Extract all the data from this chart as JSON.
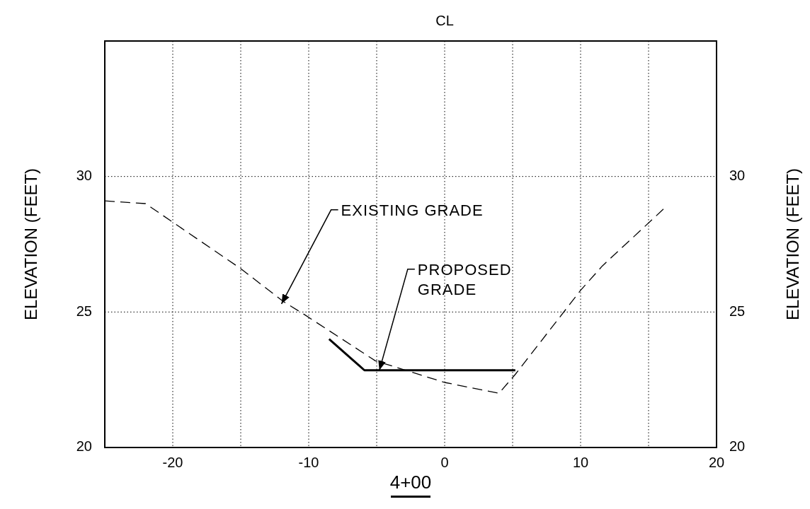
{
  "chart_data": {
    "type": "line",
    "xlabel": "4+00",
    "ylabel": "ELEVATION (FEET)",
    "y2label": "ELEVATION (FEET)",
    "xlim": [
      -25,
      20
    ],
    "ylim": [
      20,
      35
    ],
    "y2lim": [
      20,
      35
    ],
    "xticks": [
      -20,
      {
        "value": -15,
        "label": null
      },
      -10,
      {
        "value": -5,
        "label": null
      },
      0,
      {
        "value": 5,
        "label": null
      },
      10,
      {
        "value": 15,
        "label": null
      },
      20
    ],
    "yticks": [
      20,
      25,
      30
    ],
    "y2ticks": [
      20,
      25,
      30
    ],
    "grid": true,
    "series": [
      {
        "color": "#000000",
        "line_style": "dashed",
        "x": [
          -25,
          -22,
          -15,
          -11.9,
          -10.3,
          -5.1,
          0,
          4,
          5.2,
          10,
          11.6,
          16.1
        ],
        "values": [
          29.1,
          29.0,
          26.6,
          25.4,
          24.9,
          23.2,
          22.4,
          22.0,
          22.7,
          25.8,
          26.7,
          28.8
        ]
      },
      {
        "color": "#000000",
        "line_style": "solid",
        "x": [
          -8.5,
          -5.9,
          5.2
        ],
        "values": [
          24.0,
          22.85,
          22.85
        ]
      }
    ],
    "annotations": [
      "CL",
      {
        "text": "EXISTING GRADE",
        "x": -12,
        "y": 25.3
      },
      {
        "text": "PROPOSED\nGRADE",
        "x": -4.8,
        "y": 22.85
      }
    ]
  }
}
